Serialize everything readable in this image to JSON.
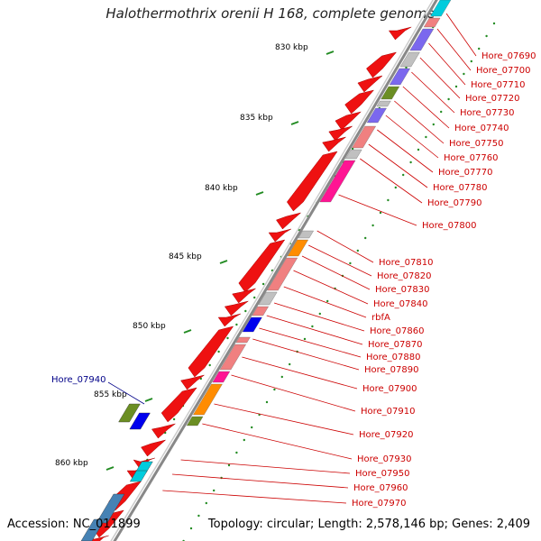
{
  "title": "Halothermothrix orenii H 168, complete genome",
  "accession": "Accession: NC_011899",
  "summary": "Topology: circular; Length: 2,578,146 bp; Genes: 2,409",
  "scale_labels": [
    "830 kbp",
    "835 kbp",
    "840 kbp",
    "845 kbp",
    "850 kbp",
    "855 kbp",
    "860 kbp"
  ],
  "gene_labels_right": [
    "Hore_07690",
    "Hore_07700",
    "Hore_07710",
    "Hore_07720",
    "Hore_07730",
    "Hore_07740",
    "Hore_07750",
    "Hore_07760",
    "Hore_07770",
    "Hore_07780",
    "Hore_07790",
    "Hore_07800",
    "Hore_07810",
    "Hore_07820",
    "Hore_07830",
    "Hore_07840",
    "rbfA",
    "Hore_07860",
    "Hore_07870",
    "Hore_07880",
    "Hore_07890",
    "Hore_07900",
    "Hore_07910",
    "Hore_07920",
    "Hore_07930",
    "Hore_07950",
    "Hore_07960",
    "Hore_07970"
  ],
  "gene_label_left": "Hore_07940",
  "colors": {
    "gene_red": "#ee1111",
    "cog_pink": "#f08080",
    "cog_magenta": "#ff1493",
    "cog_purple": "#7b68ee",
    "cog_olive": "#6b8e23",
    "cog_orange": "#ff8c00",
    "cog_blue": "#0000ee",
    "cog_cyan": "#00ccdd",
    "cog_steelblue": "#4682b4",
    "cog_gray": "#c0c0c0",
    "backbone": "#888888",
    "label_red": "#cc0000",
    "label_blue": "#000088"
  }
}
